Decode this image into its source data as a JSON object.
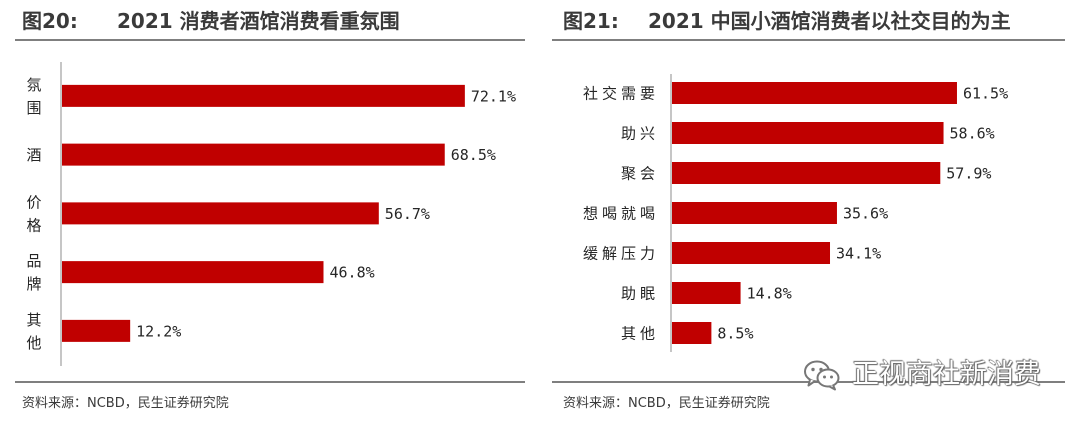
{
  "chart_data": [
    {
      "type": "bar",
      "figure_label": "图20:",
      "title": "2021 消费者酒馆消费看重氛围",
      "categories": [
        "氛围",
        "酒",
        "价格",
        "品牌",
        "其他"
      ],
      "values": [
        72.1,
        68.5,
        56.7,
        46.8,
        12.2
      ],
      "unit": "%",
      "xlim": [
        0,
        80
      ],
      "bar_color": "#C00000",
      "source": "资料来源：NCBD，民生证券研究院"
    },
    {
      "type": "bar",
      "figure_label": "图21:",
      "title": "2021 中国小酒馆消费者以社交目的为主",
      "categories": [
        "社交需要",
        "助兴",
        "聚会",
        "想喝就喝",
        "缓解压力",
        "助眠",
        "其他"
      ],
      "values": [
        61.5,
        58.6,
        57.9,
        35.6,
        34.1,
        14.8,
        8.5
      ],
      "unit": "%",
      "xlim": [
        0,
        80
      ],
      "bar_color": "#C00000",
      "source": "资料来源：NCBD，民生证券研究院"
    }
  ],
  "watermark": {
    "icon": "wechat-icon",
    "text": "正视商社新消费"
  }
}
